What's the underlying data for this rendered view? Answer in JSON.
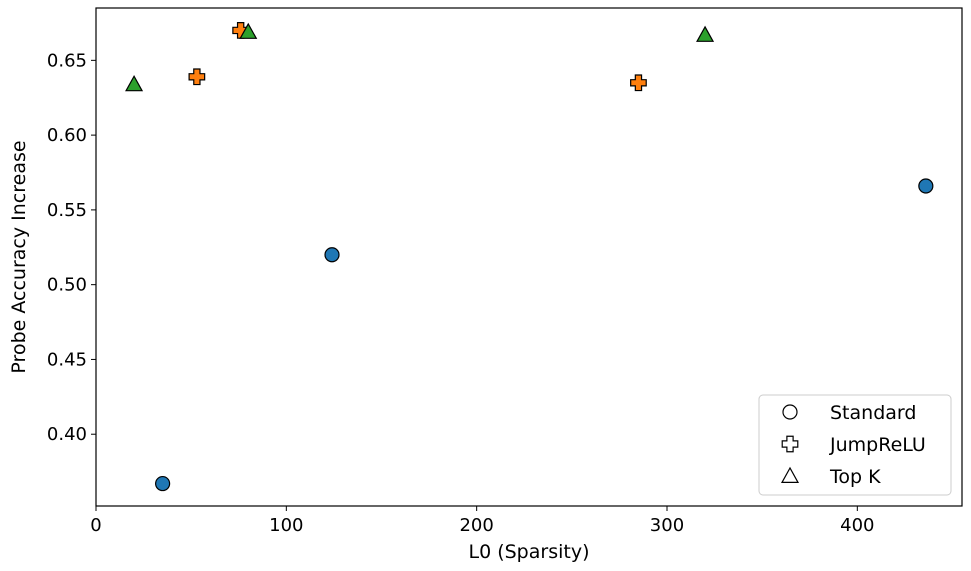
{
  "chart_data": {
    "type": "scatter",
    "title": "",
    "xlabel": "L0 (Sparsity)",
    "ylabel": "Probe Accuracy Increase",
    "xlim": [
      0,
      455
    ],
    "ylim": [
      0.352,
      0.685
    ],
    "xticks": [
      0,
      100,
      200,
      300,
      400
    ],
    "yticks": [
      0.4,
      0.45,
      0.5,
      0.55,
      0.6,
      0.65
    ],
    "grid": false,
    "legend_position": "bottom-right",
    "series": [
      {
        "name": "Standard",
        "marker": "circle",
        "color": "#1f77b4",
        "points": [
          {
            "x": 35,
            "y": 0.367
          },
          {
            "x": 124,
            "y": 0.52
          },
          {
            "x": 436,
            "y": 0.566
          }
        ]
      },
      {
        "name": "JumpReLU",
        "marker": "x",
        "color": "#ff7f0e",
        "points": [
          {
            "x": 53,
            "y": 0.639
          },
          {
            "x": 76,
            "y": 0.67
          },
          {
            "x": 285,
            "y": 0.635
          }
        ]
      },
      {
        "name": "Top K",
        "marker": "triangle",
        "color": "#2ca02c",
        "points": [
          {
            "x": 20,
            "y": 0.634
          },
          {
            "x": 80,
            "y": 0.669
          },
          {
            "x": 320,
            "y": 0.667
          }
        ]
      }
    ]
  }
}
